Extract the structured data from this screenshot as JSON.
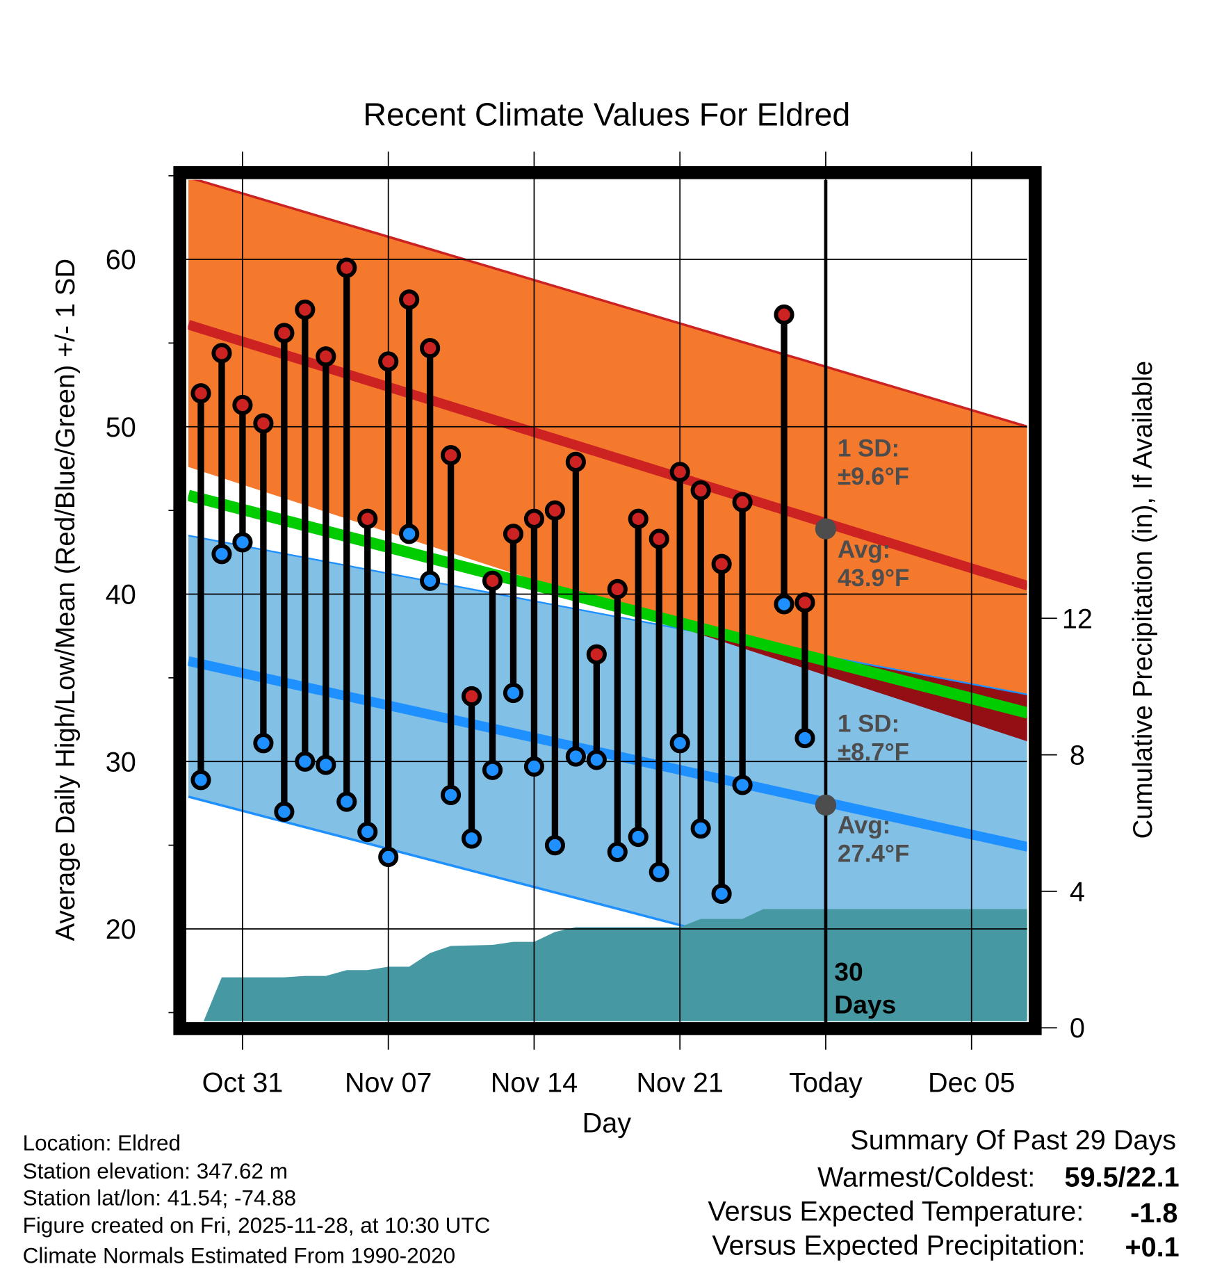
{
  "chart_data": {
    "type": "line",
    "title": "Recent Climate Values For Eldred",
    "xlabel": "Day",
    "ylabel": "Average Daily High/Low/Mean (Red/Blue/Green) +/- 1 SD",
    "y2label": "Cumulative Precipitation (in), If Available",
    "ylim": [
      14.6,
      64.8
    ],
    "y2lim": [
      0,
      20
    ],
    "yticks": [
      "20",
      "30",
      "40",
      "50",
      "60"
    ],
    "y2ticks": [
      "0",
      "4",
      "8",
      "12"
    ],
    "y2tick_values": [
      0,
      4,
      8,
      12
    ],
    "ytick_values": [
      20,
      30,
      40,
      50,
      60
    ],
    "xticks": [
      {
        "label": "Oct 31",
        "day": 2
      },
      {
        "label": "Nov 07",
        "day": 9
      },
      {
        "label": "Nov 14",
        "day": 16
      },
      {
        "label": "Nov 21",
        "day": 23
      },
      {
        "label": "Today",
        "day": 30
      },
      {
        "label": "Dec 05",
        "day": 37
      }
    ],
    "x_unit": "days since Oct 29",
    "xlim": [
      -0.6,
      39.7
    ],
    "grid": true,
    "daily": [
      {
        "date": "Oct 29",
        "day": 0,
        "high": 52.0,
        "low": 28.9
      },
      {
        "date": "Oct 30",
        "day": 1,
        "high": 54.4,
        "low": 42.4
      },
      {
        "date": "Oct 31",
        "day": 2,
        "high": 51.3,
        "low": 43.1
      },
      {
        "date": "Nov 01",
        "day": 3,
        "high": 50.2,
        "low": 31.1
      },
      {
        "date": "Nov 02",
        "day": 4,
        "high": 55.6,
        "low": 27.0
      },
      {
        "date": "Nov 03",
        "day": 5,
        "high": 57.0,
        "low": 30.0
      },
      {
        "date": "Nov 04",
        "day": 6,
        "high": 54.2,
        "low": 29.8
      },
      {
        "date": "Nov 05",
        "day": 7,
        "high": 59.5,
        "low": 27.6
      },
      {
        "date": "Nov 06",
        "day": 8,
        "high": 44.5,
        "low": 25.8
      },
      {
        "date": "Nov 07",
        "day": 9,
        "high": 53.9,
        "low": 24.3
      },
      {
        "date": "Nov 08",
        "day": 10,
        "high": 57.6,
        "low": 43.6
      },
      {
        "date": "Nov 09",
        "day": 11,
        "high": 54.7,
        "low": 40.8
      },
      {
        "date": "Nov 10",
        "day": 12,
        "high": 48.3,
        "low": 28.0
      },
      {
        "date": "Nov 11",
        "day": 13,
        "high": 33.9,
        "low": 25.4
      },
      {
        "date": "Nov 12",
        "day": 14,
        "high": 40.8,
        "low": 29.5
      },
      {
        "date": "Nov 13",
        "day": 15,
        "high": 43.6,
        "low": 34.1
      },
      {
        "date": "Nov 14",
        "day": 16,
        "high": 44.5,
        "low": 29.7
      },
      {
        "date": "Nov 15",
        "day": 17,
        "high": 45.0,
        "low": 25.0
      },
      {
        "date": "Nov 16",
        "day": 18,
        "high": 47.9,
        "low": 30.3
      },
      {
        "date": "Nov 17",
        "day": 19,
        "high": 36.4,
        "low": 30.1
      },
      {
        "date": "Nov 18",
        "day": 20,
        "high": 40.3,
        "low": 24.6
      },
      {
        "date": "Nov 19",
        "day": 21,
        "high": 44.5,
        "low": 25.5
      },
      {
        "date": "Nov 20",
        "day": 22,
        "high": 43.3,
        "low": 23.4
      },
      {
        "date": "Nov 21",
        "day": 23,
        "high": 47.3,
        "low": 31.1
      },
      {
        "date": "Nov 22",
        "day": 24,
        "high": 46.2,
        "low": 26.0
      },
      {
        "date": "Nov 23",
        "day": 25,
        "high": 41.8,
        "low": 22.1
      },
      {
        "date": "Nov 24",
        "day": 26,
        "high": 45.5,
        "low": 28.6
      },
      {
        "date": "Nov 26",
        "day": 28,
        "high": 56.7,
        "low": 39.4
      },
      {
        "date": "Nov 27",
        "day": 29,
        "high": 39.5,
        "low": 31.4
      }
    ],
    "normals": {
      "x_days": [
        -0.6,
        39.7
      ],
      "high_plus_sd": [
        64.9,
        50.0
      ],
      "high_avg": [
        56.1,
        40.5
      ],
      "high_minus_sd": [
        47.6,
        31.2
      ],
      "mean": [
        45.9,
        32.9
      ],
      "low_plus_sd": [
        43.5,
        34.0
      ],
      "low_avg": [
        36.0,
        24.9
      ],
      "low_minus_sd": [
        27.9,
        14.8
      ]
    },
    "precip_cumulative": {
      "days": [
        0,
        1,
        4,
        5,
        6,
        7,
        8,
        9,
        10,
        11,
        12,
        14,
        15,
        16,
        17,
        18,
        23,
        24,
        26,
        27,
        39.7
      ],
      "values": [
        0,
        1.48,
        1.48,
        1.52,
        1.52,
        1.69,
        1.69,
        1.79,
        1.79,
        2.19,
        2.4,
        2.43,
        2.52,
        2.52,
        2.81,
        2.95,
        2.95,
        3.19,
        3.19,
        3.48,
        3.48
      ]
    },
    "today_day": 30,
    "today_high_avg": 43.9,
    "today_low_avg": 27.4,
    "annotations": {
      "high_sd_label": "1 SD:",
      "high_sd_value": "±9.6°F",
      "high_avg_label": "Avg:",
      "high_avg_value": "43.9°F",
      "low_sd_label": "1 SD:",
      "low_sd_value": "±8.7°F",
      "low_avg_label": "Avg:",
      "low_avg_value": "27.4°F",
      "days_num": "30",
      "days_label": "Days"
    },
    "colors": {
      "high_band": "#f5792d",
      "high_line": "#cc2222",
      "low_band": "#82c0e6",
      "low_line": "#1e90ff",
      "mean": "#00cc00",
      "overlap": "#930f14",
      "precip": "#4699a2",
      "today_dot": "#4d4d4d"
    }
  },
  "footer": {
    "location": "Location: Eldred",
    "elevation": "Station elevation: 347.62 m",
    "latlon": "Station lat/lon: 41.54; -74.88",
    "created": "Figure created on Fri, 2025-11-28, at 10:30 UTC",
    "normals": "Climate Normals Estimated From 1990-2020"
  },
  "summary": {
    "title": "Summary Of Past 29 Days",
    "warmest_label": "Warmest/Coldest:",
    "warmest_value": "59.5/22.1",
    "temp_label": "Versus Expected Temperature:",
    "temp_value": "-1.8",
    "temp_color": "#1e90ff",
    "precip_label": "Versus Expected Precipitation:",
    "precip_value": "+0.1",
    "precip_color": "#22bb22"
  }
}
